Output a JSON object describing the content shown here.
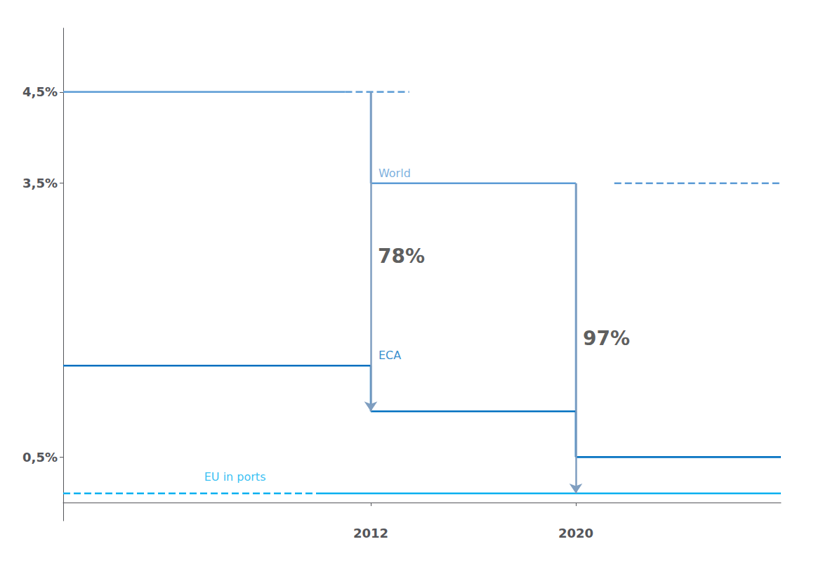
{
  "chart_data": {
    "type": "line",
    "xlim": [
      2000,
      2028
    ],
    "xticks": [
      2012,
      2020
    ],
    "ylim": [
      -0.2,
      5.2
    ],
    "yticks": [
      {
        "value": 0.5,
        "label": "0,5%"
      },
      {
        "value": 3.5,
        "label": "3,5%"
      },
      {
        "value": 4.5,
        "label": "4,5%"
      }
    ],
    "grid": false,
    "series": [
      {
        "name": "World",
        "color": "#5b9bd5",
        "name_label": {
          "x": 2012.3,
          "y": 3.55
        },
        "segments": [
          {
            "x": [
              2000,
              2011
            ],
            "y": [
              4.5,
              4.5
            ],
            "line_style": "solid"
          },
          {
            "x": [
              2011,
              2013.5
            ],
            "y": [
              4.5,
              4.5
            ],
            "line_style": "dashed"
          },
          {
            "x": [
              2012,
              2012
            ],
            "y": [
              4.5,
              3.5
            ],
            "line_style": "solid"
          },
          {
            "x": [
              2012,
              2020
            ],
            "y": [
              3.5,
              3.5
            ],
            "line_style": "solid"
          },
          {
            "x": [
              2020,
              2020
            ],
            "y": [
              3.5,
              0.5
            ],
            "line_style": "solid"
          },
          {
            "x": [
              2020,
              2028
            ],
            "y": [
              0.5,
              0.5
            ],
            "line_style": "solid"
          },
          {
            "x": [
              2021.5,
              2028
            ],
            "y": [
              3.5,
              3.5
            ],
            "line_style": "dashed"
          }
        ]
      },
      {
        "name": "ECA",
        "color": "#0070c0",
        "name_label": {
          "x": 2012.3,
          "y": 1.55
        },
        "segments": [
          {
            "x": [
              2000,
              2012
            ],
            "y": [
              1.5,
              1.5
            ],
            "line_style": "solid"
          },
          {
            "x": [
              2012,
              2012
            ],
            "y": [
              1.5,
              1.0
            ],
            "line_style": "solid"
          },
          {
            "x": [
              2012,
              2020
            ],
            "y": [
              1.0,
              1.0
            ],
            "line_style": "solid"
          },
          {
            "x": [
              2020,
              2020
            ],
            "y": [
              1.0,
              0.5
            ],
            "line_style": "solid"
          },
          {
            "x": [
              2020,
              2028
            ],
            "y": [
              0.5,
              0.5
            ],
            "line_style": "solid"
          }
        ]
      },
      {
        "name": "EU in ports",
        "color": "#00b0f0",
        "name_label": {
          "x": 2005.5,
          "y": 0.22
        },
        "segments": [
          {
            "x": [
              2000,
              2010
            ],
            "y": [
              0.1,
              0.1
            ],
            "line_style": "dashed"
          },
          {
            "x": [
              2010,
              2028
            ],
            "y": [
              0.1,
              0.1
            ],
            "line_style": "solid"
          }
        ]
      }
    ],
    "arrows": [
      {
        "x": 2012,
        "y_start": 4.5,
        "y_end": 1.0,
        "label": "78%",
        "label_x": 2012,
        "label_y": 2.7,
        "color": "#7f9ec0"
      },
      {
        "x": 2020,
        "y_start": 3.5,
        "y_end": 0.1,
        "label": "97%",
        "label_x": 2020,
        "label_y": 1.8,
        "color": "#7f9ec0"
      }
    ]
  }
}
